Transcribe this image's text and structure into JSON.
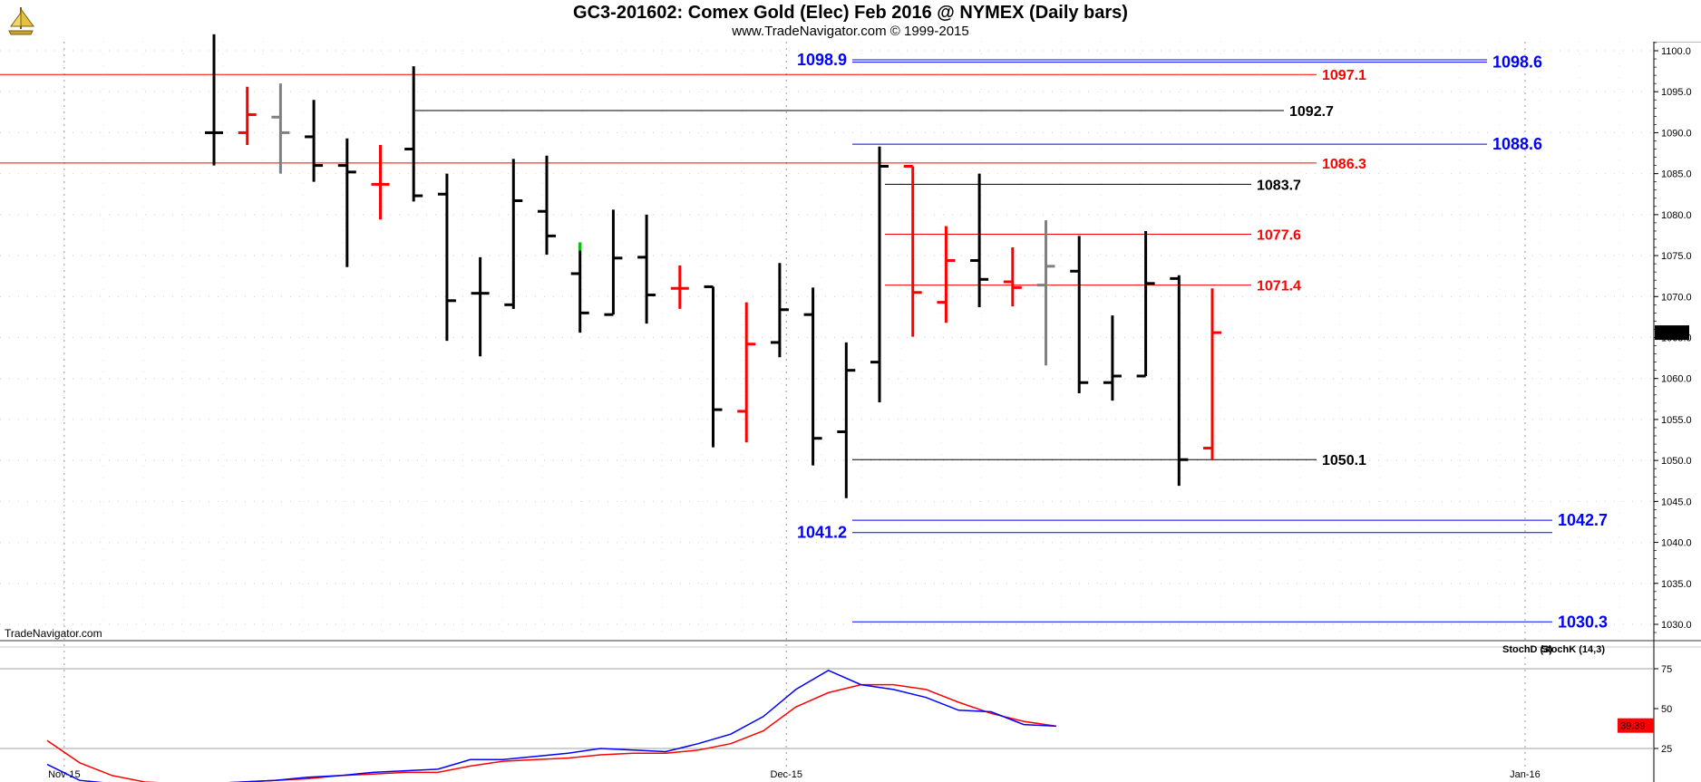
{
  "header": {
    "title": "GC3-201602:  Comex Gold (Elec) Feb 2016 @ NYMEX  (Daily bars)",
    "subtitle": "www.TradeNavigator.com © 1999-2015"
  },
  "watermark": "TradeNavigator.com",
  "last_price_label": "1065.6",
  "stoch_last_label": "39.39",
  "colors": {
    "up": "#000000",
    "down": "#ff0000",
    "neutral": "#808080",
    "level_red": "#ff0000",
    "level_blue": "#0000ff",
    "level_black": "#000000",
    "stoch_d": "#ff0000",
    "stoch_k": "#0000ff"
  },
  "chart_data": [
    {
      "type": "ohlc",
      "ylim": [
        1028,
        1102
      ],
      "y_ticks": [
        "1100.0",
        "1095.0",
        "1090.0",
        "1085.0",
        "1080.0",
        "1075.0",
        "1070.0",
        "1065.0",
        "1060.0",
        "1055.0",
        "1050.0",
        "1045.0",
        "1040.0",
        "1035.0",
        "1030.0"
      ],
      "x_labels": [
        {
          "label": "Nov-15",
          "index": -4.5
        },
        {
          "label": "Dec-15",
          "index": 17.2
        },
        {
          "label": "Jan-16",
          "index": 39.4
        }
      ],
      "bars": [
        {
          "o": 1090,
          "h": 1102,
          "l": 1086,
          "c": 1090,
          "color": "up"
        },
        {
          "o": 1090,
          "h": 1095.6,
          "l": 1088.5,
          "c": 1092.2,
          "color": "down"
        },
        {
          "o": 1091.9,
          "h": 1096,
          "l": 1085,
          "c": 1090,
          "color": "neutral"
        },
        {
          "o": 1089.5,
          "h": 1094,
          "l": 1084,
          "c": 1086,
          "color": "up"
        },
        {
          "o": 1086,
          "h": 1089.3,
          "l": 1073.6,
          "c": 1085.2,
          "color": "up"
        },
        {
          "o": 1083.7,
          "h": 1088.5,
          "l": 1079.4,
          "c": 1083.7,
          "color": "down"
        },
        {
          "o": 1088,
          "h": 1098.1,
          "l": 1081.6,
          "c": 1082.3,
          "color": "up"
        },
        {
          "o": 1082.5,
          "h": 1085,
          "l": 1064.6,
          "c": 1069.5,
          "color": "up"
        },
        {
          "o": 1070.4,
          "h": 1074.8,
          "l": 1062.7,
          "c": 1070.4,
          "color": "up"
        },
        {
          "o": 1069,
          "h": 1086.8,
          "l": 1068.5,
          "c": 1081.7,
          "color": "up"
        },
        {
          "o": 1080.4,
          "h": 1087.2,
          "l": 1075.1,
          "c": 1077.4,
          "color": "up"
        },
        {
          "o": 1072.8,
          "h": 1076.6,
          "l": 1065.6,
          "c": 1068,
          "color": "up"
        },
        {
          "o": 1067.8,
          "h": 1080.6,
          "l": 1067.8,
          "c": 1074.7,
          "color": "up"
        },
        {
          "o": 1074.8,
          "h": 1080.0,
          "l": 1066.7,
          "c": 1070.2,
          "color": "up"
        },
        {
          "o": 1071,
          "h": 1073.8,
          "l": 1068.5,
          "c": 1071,
          "color": "down"
        },
        {
          "o": 1071.2,
          "h": 1071.2,
          "l": 1051.6,
          "c": 1056.2,
          "color": "up"
        },
        {
          "o": 1056.0,
          "h": 1069.3,
          "l": 1052.2,
          "c": 1064.2,
          "color": "down"
        },
        {
          "o": 1064.4,
          "h": 1074.1,
          "l": 1062.6,
          "c": 1068.4,
          "color": "up"
        },
        {
          "o": 1067.8,
          "h": 1071.1,
          "l": 1049.4,
          "c": 1052.7,
          "color": "up"
        },
        {
          "o": 1053.5,
          "h": 1064.4,
          "l": 1045.4,
          "c": 1061.0,
          "color": "up"
        },
        {
          "o": 1062.0,
          "h": 1088.3,
          "l": 1057.1,
          "c": 1085.9,
          "color": "up"
        },
        {
          "o": 1085.9,
          "h": 1085.9,
          "l": 1065.1,
          "c": 1070.5,
          "color": "down"
        },
        {
          "o": 1069.3,
          "h": 1078.6,
          "l": 1066.8,
          "c": 1074.4,
          "color": "down"
        },
        {
          "o": 1074.4,
          "h": 1085.0,
          "l": 1068.7,
          "c": 1072.1,
          "color": "up"
        },
        {
          "o": 1071.8,
          "h": 1076.0,
          "l": 1068.8,
          "c": 1071.1,
          "color": "down"
        },
        {
          "o": 1071.4,
          "h": 1079.3,
          "l": 1061.6,
          "c": 1073.7,
          "color": "neutral"
        },
        {
          "o": 1073.1,
          "h": 1077.4,
          "l": 1058.2,
          "c": 1059.5,
          "color": "up"
        },
        {
          "o": 1059.5,
          "h": 1067.7,
          "l": 1057.3,
          "c": 1060.3,
          "color": "up"
        },
        {
          "o": 1060.3,
          "h": 1078.0,
          "l": 1060.3,
          "c": 1071.6,
          "color": "up"
        },
        {
          "o": 1072.2,
          "h": 1072.6,
          "l": 1046.9,
          "c": 1050.1,
          "color": "up"
        },
        {
          "o": 1051.5,
          "h": 1071.0,
          "l": 1050.0,
          "c": 1065.6,
          "color": "down"
        }
      ],
      "levels": [
        {
          "price": 1098.9,
          "label": "1098.9",
          "color": "blue",
          "from": "left_label"
        },
        {
          "price": 1098.6,
          "label": "1098.6",
          "color": "blue"
        },
        {
          "price": 1097.1,
          "label": "1097.1",
          "color": "red"
        },
        {
          "price": 1092.7,
          "label": "1092.7",
          "color": "black"
        },
        {
          "price": 1088.6,
          "label": "1088.6",
          "color": "blue"
        },
        {
          "price": 1086.3,
          "label": "1086.3",
          "color": "red"
        },
        {
          "price": 1083.7,
          "label": "1083.7",
          "color": "black"
        },
        {
          "price": 1077.6,
          "label": "1077.6",
          "color": "red"
        },
        {
          "price": 1071.4,
          "label": "1071.4",
          "color": "red"
        },
        {
          "price": 1050.1,
          "label": "1050.1",
          "color": "black"
        },
        {
          "price": 1042.7,
          "label": "1042.7",
          "color": "blue"
        },
        {
          "price": 1041.2,
          "label": "1041.2",
          "color": "blue",
          "from": "left_label"
        },
        {
          "price": 1030.3,
          "label": "1030.3",
          "color": "blue"
        }
      ]
    },
    {
      "type": "line",
      "legend": [
        "StochD (3)",
        "StochK (14,3)"
      ],
      "ylim": [
        0,
        100
      ],
      "y_ticks": [
        "75",
        "50",
        "25"
      ],
      "series": [
        {
          "name": "StochD (3)",
          "color": "red",
          "values": [
            30,
            16,
            8,
            4,
            3,
            3,
            4,
            5,
            6,
            8,
            9,
            10,
            10,
            14,
            17,
            18,
            19,
            21,
            22,
            22,
            24,
            28,
            36,
            51,
            60,
            65,
            65,
            62,
            54,
            47,
            42,
            39
          ]
        },
        {
          "name": "StochK (14,3)",
          "color": "blue",
          "values": [
            15,
            5,
            3,
            2,
            2,
            3,
            4,
            5,
            7,
            8,
            10,
            11,
            12,
            18,
            18,
            20,
            22,
            25,
            24,
            23,
            28,
            34,
            45,
            62,
            74,
            65,
            62,
            57,
            49,
            48,
            40,
            39
          ]
        }
      ]
    }
  ]
}
